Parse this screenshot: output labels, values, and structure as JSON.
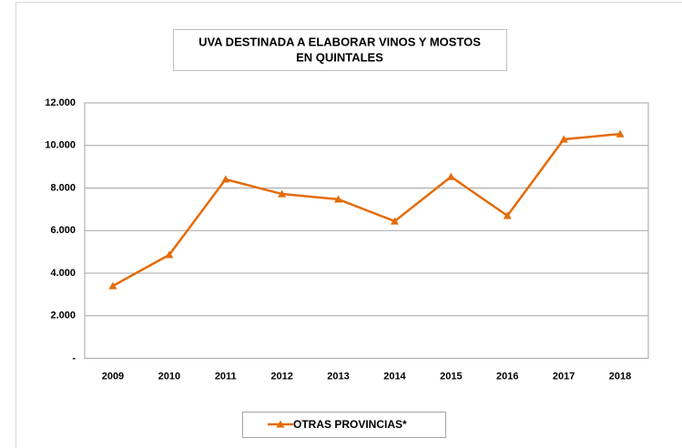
{
  "chart_data": {
    "type": "line",
    "title": [
      "UVA DESTINADA A ELABORAR VINOS Y MOSTOS",
      "EN QUINTALES"
    ],
    "categories": [
      "2009",
      "2010",
      "2011",
      "2012",
      "2013",
      "2014",
      "2015",
      "2016",
      "2017",
      "2018"
    ],
    "series": [
      {
        "name": "OTRAS PROVINCIAS*",
        "color": "#e36c0a",
        "values": [
          3400,
          4860,
          8410,
          7720,
          7470,
          6440,
          8530,
          6700,
          10290,
          10540
        ]
      }
    ],
    "ylim": [
      0,
      12000
    ],
    "yticks": [
      {
        "value": 0,
        "label": "-"
      },
      {
        "value": 2000,
        "label": "2.000"
      },
      {
        "value": 4000,
        "label": "4.000"
      },
      {
        "value": 6000,
        "label": "6.000"
      },
      {
        "value": 8000,
        "label": "8.000"
      },
      {
        "value": 10000,
        "label": "10.000"
      },
      {
        "value": 12000,
        "label": "12.000"
      }
    ],
    "grid": true,
    "legend": "bottom"
  }
}
